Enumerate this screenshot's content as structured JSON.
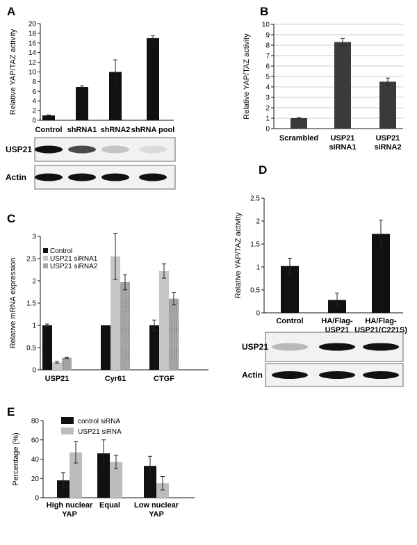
{
  "colors": {
    "black": "#111111",
    "darkgray": "#3a3a3a",
    "lightgray": "#c6c6c6",
    "midgray": "#a9a9a9",
    "E_gray": "#bdbdbd"
  },
  "chart_data": [
    {
      "panel": "A",
      "type": "bar",
      "ylabel": "Relative YAP/TAZ activity",
      "ylim": [
        0,
        20
      ],
      "yticks": [
        0,
        2,
        4,
        6,
        8,
        10,
        12,
        14,
        16,
        18,
        20
      ],
      "categories": [
        "Control",
        "shRNA1",
        "shRNA2",
        "shRNA pool"
      ],
      "series": [
        {
          "values": [
            1,
            6.9,
            10,
            17
          ],
          "errors": [
            0.1,
            0.2,
            2.5,
            0.5
          ]
        }
      ],
      "blots": [
        {
          "label": "USP21",
          "intensities": [
            1.0,
            0.75,
            0.2,
            0.1
          ]
        },
        {
          "label": "Actin",
          "intensities": [
            1.0,
            1.0,
            1.0,
            1.0
          ]
        }
      ]
    },
    {
      "panel": "B",
      "type": "bar",
      "ylabel": "Relative YAP/TAZ activity",
      "ylim": [
        0,
        10
      ],
      "yticks": [
        0,
        1,
        2,
        3,
        4,
        5,
        6,
        7,
        8,
        9,
        10
      ],
      "categories": [
        [
          "Scrambled"
        ],
        [
          "USP21",
          "siRNA1"
        ],
        [
          "USP21",
          "siRNA2"
        ]
      ],
      "series": [
        {
          "values": [
            1,
            8.3,
            4.5
          ],
          "errors": [
            0.05,
            0.35,
            0.35
          ]
        }
      ],
      "grid": true
    },
    {
      "panel": "C",
      "type": "bar",
      "ylabel": "Relative mRNA expression",
      "ylim": [
        0,
        3
      ],
      "yticks": [
        "0",
        "0.5",
        "1",
        "1.5",
        "2",
        "2.5",
        "3"
      ],
      "categories": [
        "USP21",
        "Cyr61",
        "CTGF"
      ],
      "legend": [
        "Control",
        "USP21 siRNA1",
        "USP21 siRNA2"
      ],
      "legend_position": "top-left",
      "series": [
        {
          "values": [
            1,
            1,
            1
          ],
          "errors": [
            0.03,
            0,
            0.12
          ]
        },
        {
          "values": [
            0.17,
            2.55,
            2.22
          ],
          "errors": [
            0.02,
            0.52,
            0.16
          ]
        },
        {
          "values": [
            0.27,
            1.97,
            1.6
          ],
          "errors": [
            0.01,
            0.17,
            0.14
          ]
        }
      ]
    },
    {
      "panel": "D",
      "type": "bar",
      "ylabel": "Relative YAP/TAZ activity",
      "ylim": [
        0,
        2.5
      ],
      "yticks": [
        "0",
        "0.5",
        "1",
        "1.5",
        "2",
        "2.5"
      ],
      "categories": [
        [
          "Control"
        ],
        [
          "HA/Flag-",
          "USP21"
        ],
        [
          "HA/Flag-",
          "USP21(C221S)"
        ]
      ],
      "series": [
        {
          "values": [
            1.02,
            0.28,
            1.72
          ],
          "errors": [
            0.17,
            0.15,
            0.3
          ]
        }
      ],
      "blots": [
        {
          "label": "USP21",
          "intensities": [
            0.25,
            1.0,
            1.0
          ]
        },
        {
          "label": "Actin",
          "intensities": [
            1.0,
            1.0,
            1.0
          ]
        }
      ]
    },
    {
      "panel": "E",
      "type": "bar",
      "ylabel": "Percentage (%)",
      "ylim": [
        0,
        80
      ],
      "yticks": [
        0,
        20,
        40,
        60,
        80
      ],
      "categories": [
        [
          "High nuclear",
          "YAP"
        ],
        [
          "Equal"
        ],
        [
          "Low nuclear",
          "YAP"
        ]
      ],
      "legend": [
        "control siRNA",
        "USP21 siRNA"
      ],
      "legend_position": "top-left",
      "series": [
        {
          "name": "control siRNA",
          "values": [
            18,
            46,
            33
          ],
          "errors": [
            8,
            14,
            10
          ]
        },
        {
          "name": "USP21 siRNA",
          "values": [
            47,
            37,
            15
          ],
          "errors": [
            11,
            7,
            7
          ]
        }
      ]
    }
  ]
}
